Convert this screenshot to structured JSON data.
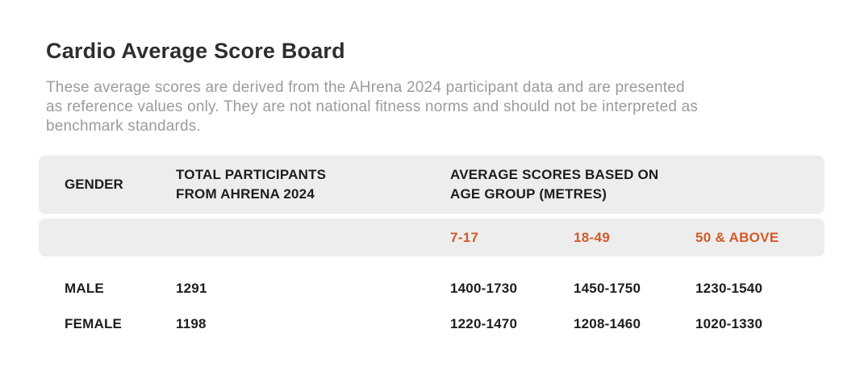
{
  "board": {
    "title": "Cardio Average Score Board",
    "description_lines": [
      "These average scores are derived from the AHrena 2024 participant data and are presented",
      "as reference values only. They are not national fitness norms and should not be interpreted as",
      "benchmark standards."
    ]
  },
  "table": {
    "headers": {
      "gender": "GENDER",
      "total_line1": "TOTAL PARTICIPANTS",
      "total_line2": "FROM AHRENA 2024",
      "scores_line1": "AVERAGE SCORES BASED ON",
      "scores_line2": "AGE GROUP (METRES)"
    },
    "age_groups": [
      "7-17",
      "18-49",
      "50 & ABOVE"
    ],
    "rows": [
      {
        "gender": "MALE",
        "total_participants": "1291",
        "scores": [
          "1400-1730",
          "1450-1750",
          "1230-1540"
        ]
      },
      {
        "gender": "FEMALE",
        "total_participants": "1198",
        "scores": [
          "1220-1470",
          "1208-1460",
          "1020-1330"
        ]
      }
    ]
  },
  "colors": {
    "accent_orange": "#d15b28",
    "band_background": "#eeeded",
    "title_text": "#2e2e2e",
    "body_text": "#1d1d1d",
    "description_text": "#9b9b9b",
    "card_background": "#ffffff"
  }
}
